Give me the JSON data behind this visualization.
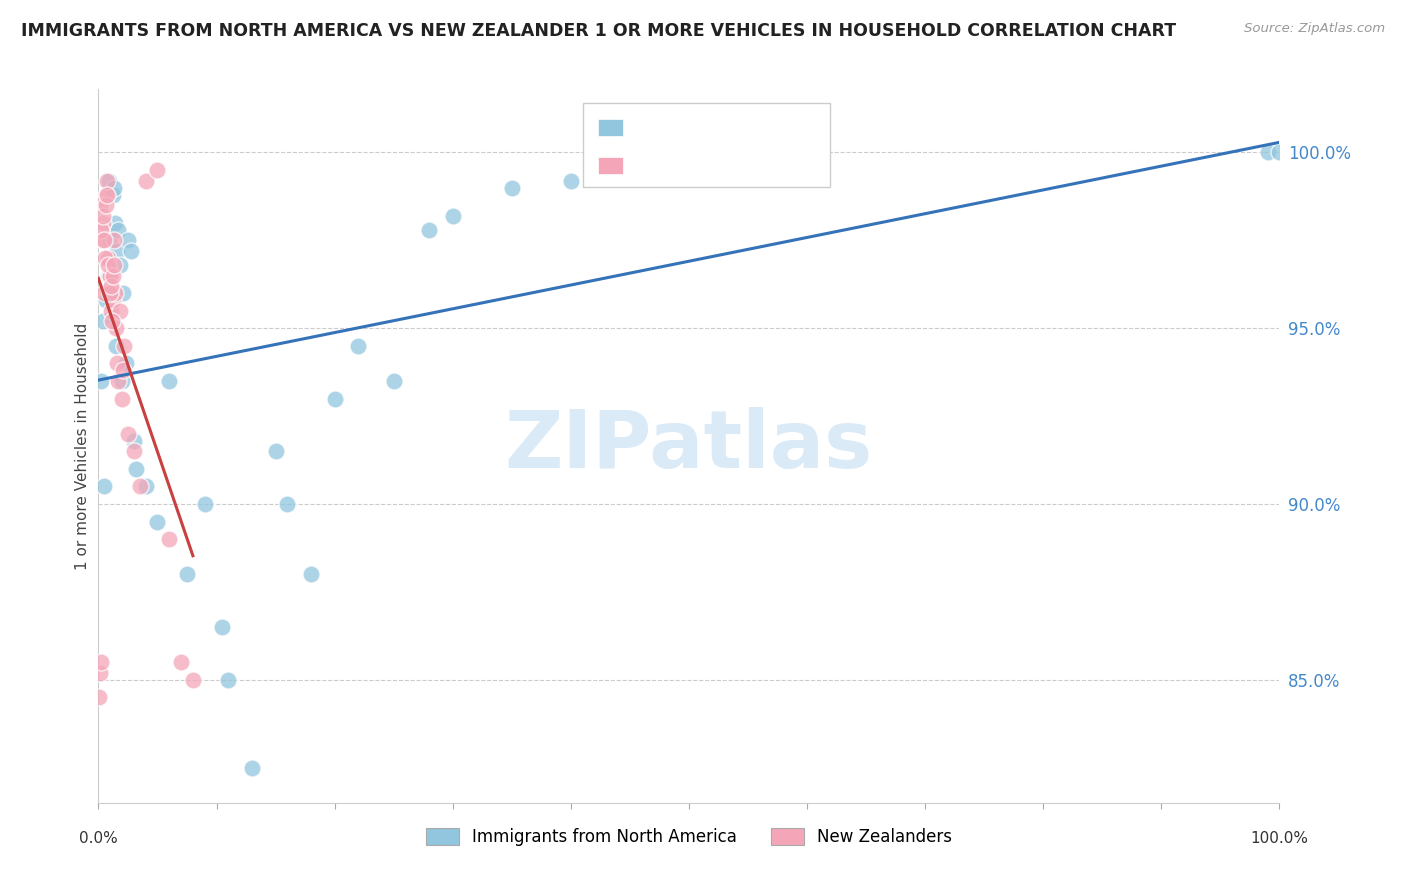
{
  "title": "IMMIGRANTS FROM NORTH AMERICA VS NEW ZEALANDER 1 OR MORE VEHICLES IN HOUSEHOLD CORRELATION CHART",
  "source": "Source: ZipAtlas.com",
  "ylabel": "1 or more Vehicles in Household",
  "ylabel_right_ticks": [
    85.0,
    90.0,
    95.0,
    100.0
  ],
  "xmin": 0.0,
  "xmax": 100.0,
  "ymin": 81.5,
  "ymax": 101.8,
  "blue_color": "#92c5de",
  "pink_color": "#f4a6b8",
  "blue_line_color": "#3573b9",
  "pink_line_color": "#c94040",
  "legend_label_blue": "Immigrants from North America",
  "legend_label_pink": "New Zealanders",
  "watermark_text": "ZIPatlas",
  "watermark_color": "#daeaf7",
  "blue_x": [
    0.2,
    0.4,
    0.5,
    0.6,
    0.8,
    0.9,
    1.0,
    1.1,
    1.2,
    1.3,
    1.4,
    1.5,
    1.6,
    1.7,
    1.8,
    2.0,
    2.1,
    2.3,
    2.5,
    2.8,
    3.0,
    3.2,
    4.0,
    5.0,
    6.0,
    7.5,
    9.0,
    10.5,
    11.0,
    13.0,
    15.0,
    16.0,
    18.0,
    20.0,
    22.0,
    25.0,
    28.0,
    30.0,
    35.0,
    40.0,
    50.0,
    55.0,
    60.0,
    99.0,
    100.0
  ],
  "blue_y": [
    93.5,
    95.2,
    90.5,
    95.8,
    96.5,
    99.2,
    97.5,
    96.2,
    98.8,
    99.0,
    98.0,
    94.5,
    97.2,
    97.8,
    96.8,
    93.5,
    96.0,
    94.0,
    97.5,
    97.2,
    91.8,
    91.0,
    90.5,
    89.5,
    93.5,
    88.0,
    90.0,
    86.5,
    85.0,
    82.5,
    91.5,
    90.0,
    88.0,
    93.0,
    94.5,
    93.5,
    97.8,
    98.2,
    99.0,
    99.2,
    99.5,
    99.8,
    99.8,
    100.0,
    100.0
  ],
  "pink_x": [
    0.05,
    0.1,
    0.2,
    0.3,
    0.4,
    0.5,
    0.6,
    0.7,
    0.8,
    0.9,
    1.0,
    1.1,
    1.2,
    1.3,
    1.4,
    1.5,
    1.6,
    1.7,
    1.8,
    2.0,
    2.1,
    2.2,
    2.5,
    3.0,
    3.5,
    4.0,
    5.0,
    6.0,
    7.0,
    8.0,
    0.15,
    0.25,
    0.35,
    0.45,
    0.55,
    0.65,
    0.75,
    0.85,
    0.95,
    1.05,
    1.15,
    1.25,
    1.35
  ],
  "pink_y": [
    84.5,
    85.2,
    85.5,
    97.5,
    98.0,
    96.0,
    98.8,
    99.2,
    97.0,
    96.5,
    96.5,
    95.5,
    95.8,
    97.5,
    96.0,
    95.0,
    94.0,
    93.5,
    95.5,
    93.0,
    93.8,
    94.5,
    92.0,
    91.5,
    90.5,
    99.2,
    99.5,
    89.0,
    85.5,
    85.0,
    98.5,
    97.8,
    98.2,
    97.5,
    97.0,
    98.5,
    98.8,
    96.8,
    96.0,
    96.2,
    95.2,
    96.5,
    96.8
  ]
}
